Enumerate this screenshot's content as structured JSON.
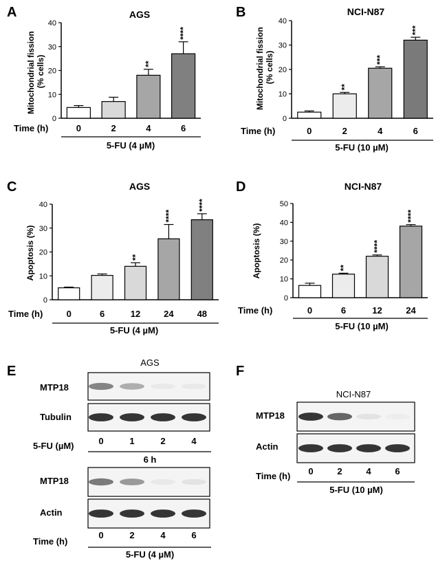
{
  "panel_letters": {
    "A": "A",
    "B": "B",
    "C": "C",
    "D": "D",
    "E": "E",
    "F": "F"
  },
  "colors": {
    "axis": "#000000",
    "bar_light": "#ffffff",
    "bar_palest": "#ececec",
    "bar_pale": "#d9d9d9",
    "bar_mid": "#a6a6a6",
    "bar_dark": "#808080",
    "bar_darker": "#7a7a7a",
    "blot_bg": "#f4f4f4",
    "band": "#2a2a2a"
  },
  "chart_data": [
    {
      "id": "A",
      "type": "bar",
      "title": "AGS",
      "ylabel_lines": [
        "Mitochondrial fission",
        "(% cells)"
      ],
      "xlabel": "Time (h)",
      "categories": [
        "0",
        "2",
        "4",
        "6"
      ],
      "values": [
        4.5,
        7,
        18,
        27
      ],
      "errors": [
        0.8,
        1.8,
        2.5,
        5
      ],
      "significance": [
        "",
        "",
        "**",
        "****"
      ],
      "ylim": [
        0,
        40
      ],
      "yticks": [
        "0",
        "10",
        "20",
        "30",
        "40"
      ],
      "treatment": "5-FU (4 µM)"
    },
    {
      "id": "B",
      "type": "bar",
      "title": "NCI-N87",
      "ylabel_lines": [
        "Mitochondrial fission",
        "(% cells)"
      ],
      "xlabel": "Time (h)",
      "categories": [
        "0",
        "2",
        "4",
        "6"
      ],
      "values": [
        2.5,
        10,
        20.5,
        32
      ],
      "errors": [
        0.5,
        0.6,
        0.6,
        1.2
      ],
      "significance": [
        "",
        "**",
        "***",
        "***"
      ],
      "ylim": [
        0,
        40
      ],
      "yticks": [
        "0",
        "10",
        "20",
        "30",
        "40"
      ],
      "treatment": "5-FU (10 µM)"
    },
    {
      "id": "C",
      "type": "bar",
      "title": "AGS",
      "ylabel_lines": [
        "Apoptosis (%)"
      ],
      "xlabel": "Time (h)",
      "categories": [
        "0",
        "6",
        "12",
        "24",
        "48"
      ],
      "values": [
        5,
        10.2,
        14,
        25.5,
        33.5
      ],
      "errors": [
        0.3,
        0.6,
        1.5,
        6,
        2.5
      ],
      "significance": [
        "",
        "",
        "**",
        "****",
        "****"
      ],
      "ylim": [
        0,
        40
      ],
      "yticks": [
        "0",
        "10",
        "20",
        "30",
        "40"
      ],
      "treatment": "5-FU (4 µM)"
    },
    {
      "id": "D",
      "type": "bar",
      "title": "NCI-N87",
      "ylabel_lines": [
        "Apoptosis (%)"
      ],
      "xlabel": "Time (h)",
      "categories": [
        "0",
        "6",
        "12",
        "24"
      ],
      "values": [
        6.5,
        12.5,
        22,
        38
      ],
      "errors": [
        1.2,
        0.5,
        0.7,
        0.8
      ],
      "significance": [
        "",
        "**",
        "****",
        "****"
      ],
      "ylim": [
        0,
        50
      ],
      "yticks": [
        "0",
        "10",
        "20",
        "30",
        "40",
        "50"
      ],
      "treatment": "5-FU (10 µM)"
    }
  ],
  "blots": {
    "E": {
      "title": "AGS",
      "top": {
        "rows": [
          {
            "label": "MTP18",
            "intensity": [
              0.55,
              0.35,
              0.05,
              0.05
            ]
          },
          {
            "label": "Tubulin",
            "intensity": [
              0.95,
              0.95,
              0.95,
              0.95
            ]
          }
        ],
        "axis_label": "5-FU (µM)",
        "lanes": [
          "0",
          "1",
          "2",
          "4"
        ],
        "sub_label": "6 h"
      },
      "bottom": {
        "rows": [
          {
            "label": "MTP18",
            "intensity": [
              0.6,
              0.45,
              0.05,
              0.08
            ]
          },
          {
            "label": "Actin",
            "intensity": [
              0.95,
              0.95,
              0.95,
              0.95
            ]
          }
        ],
        "axis_label": "Time (h)",
        "lanes": [
          "0",
          "2",
          "4",
          "6"
        ],
        "sub_label": "5-FU (4 µM)"
      }
    },
    "F": {
      "title": "NCI-N87",
      "rows": [
        {
          "label": "MTP18",
          "intensity": [
            0.95,
            0.7,
            0.08,
            0.03
          ]
        },
        {
          "label": "Actin",
          "intensity": [
            0.95,
            0.95,
            0.95,
            0.95
          ]
        }
      ],
      "axis_label": "Time (h)",
      "lanes": [
        "0",
        "2",
        "4",
        "6"
      ],
      "sub_label": "5-FU (10 µM)"
    }
  }
}
